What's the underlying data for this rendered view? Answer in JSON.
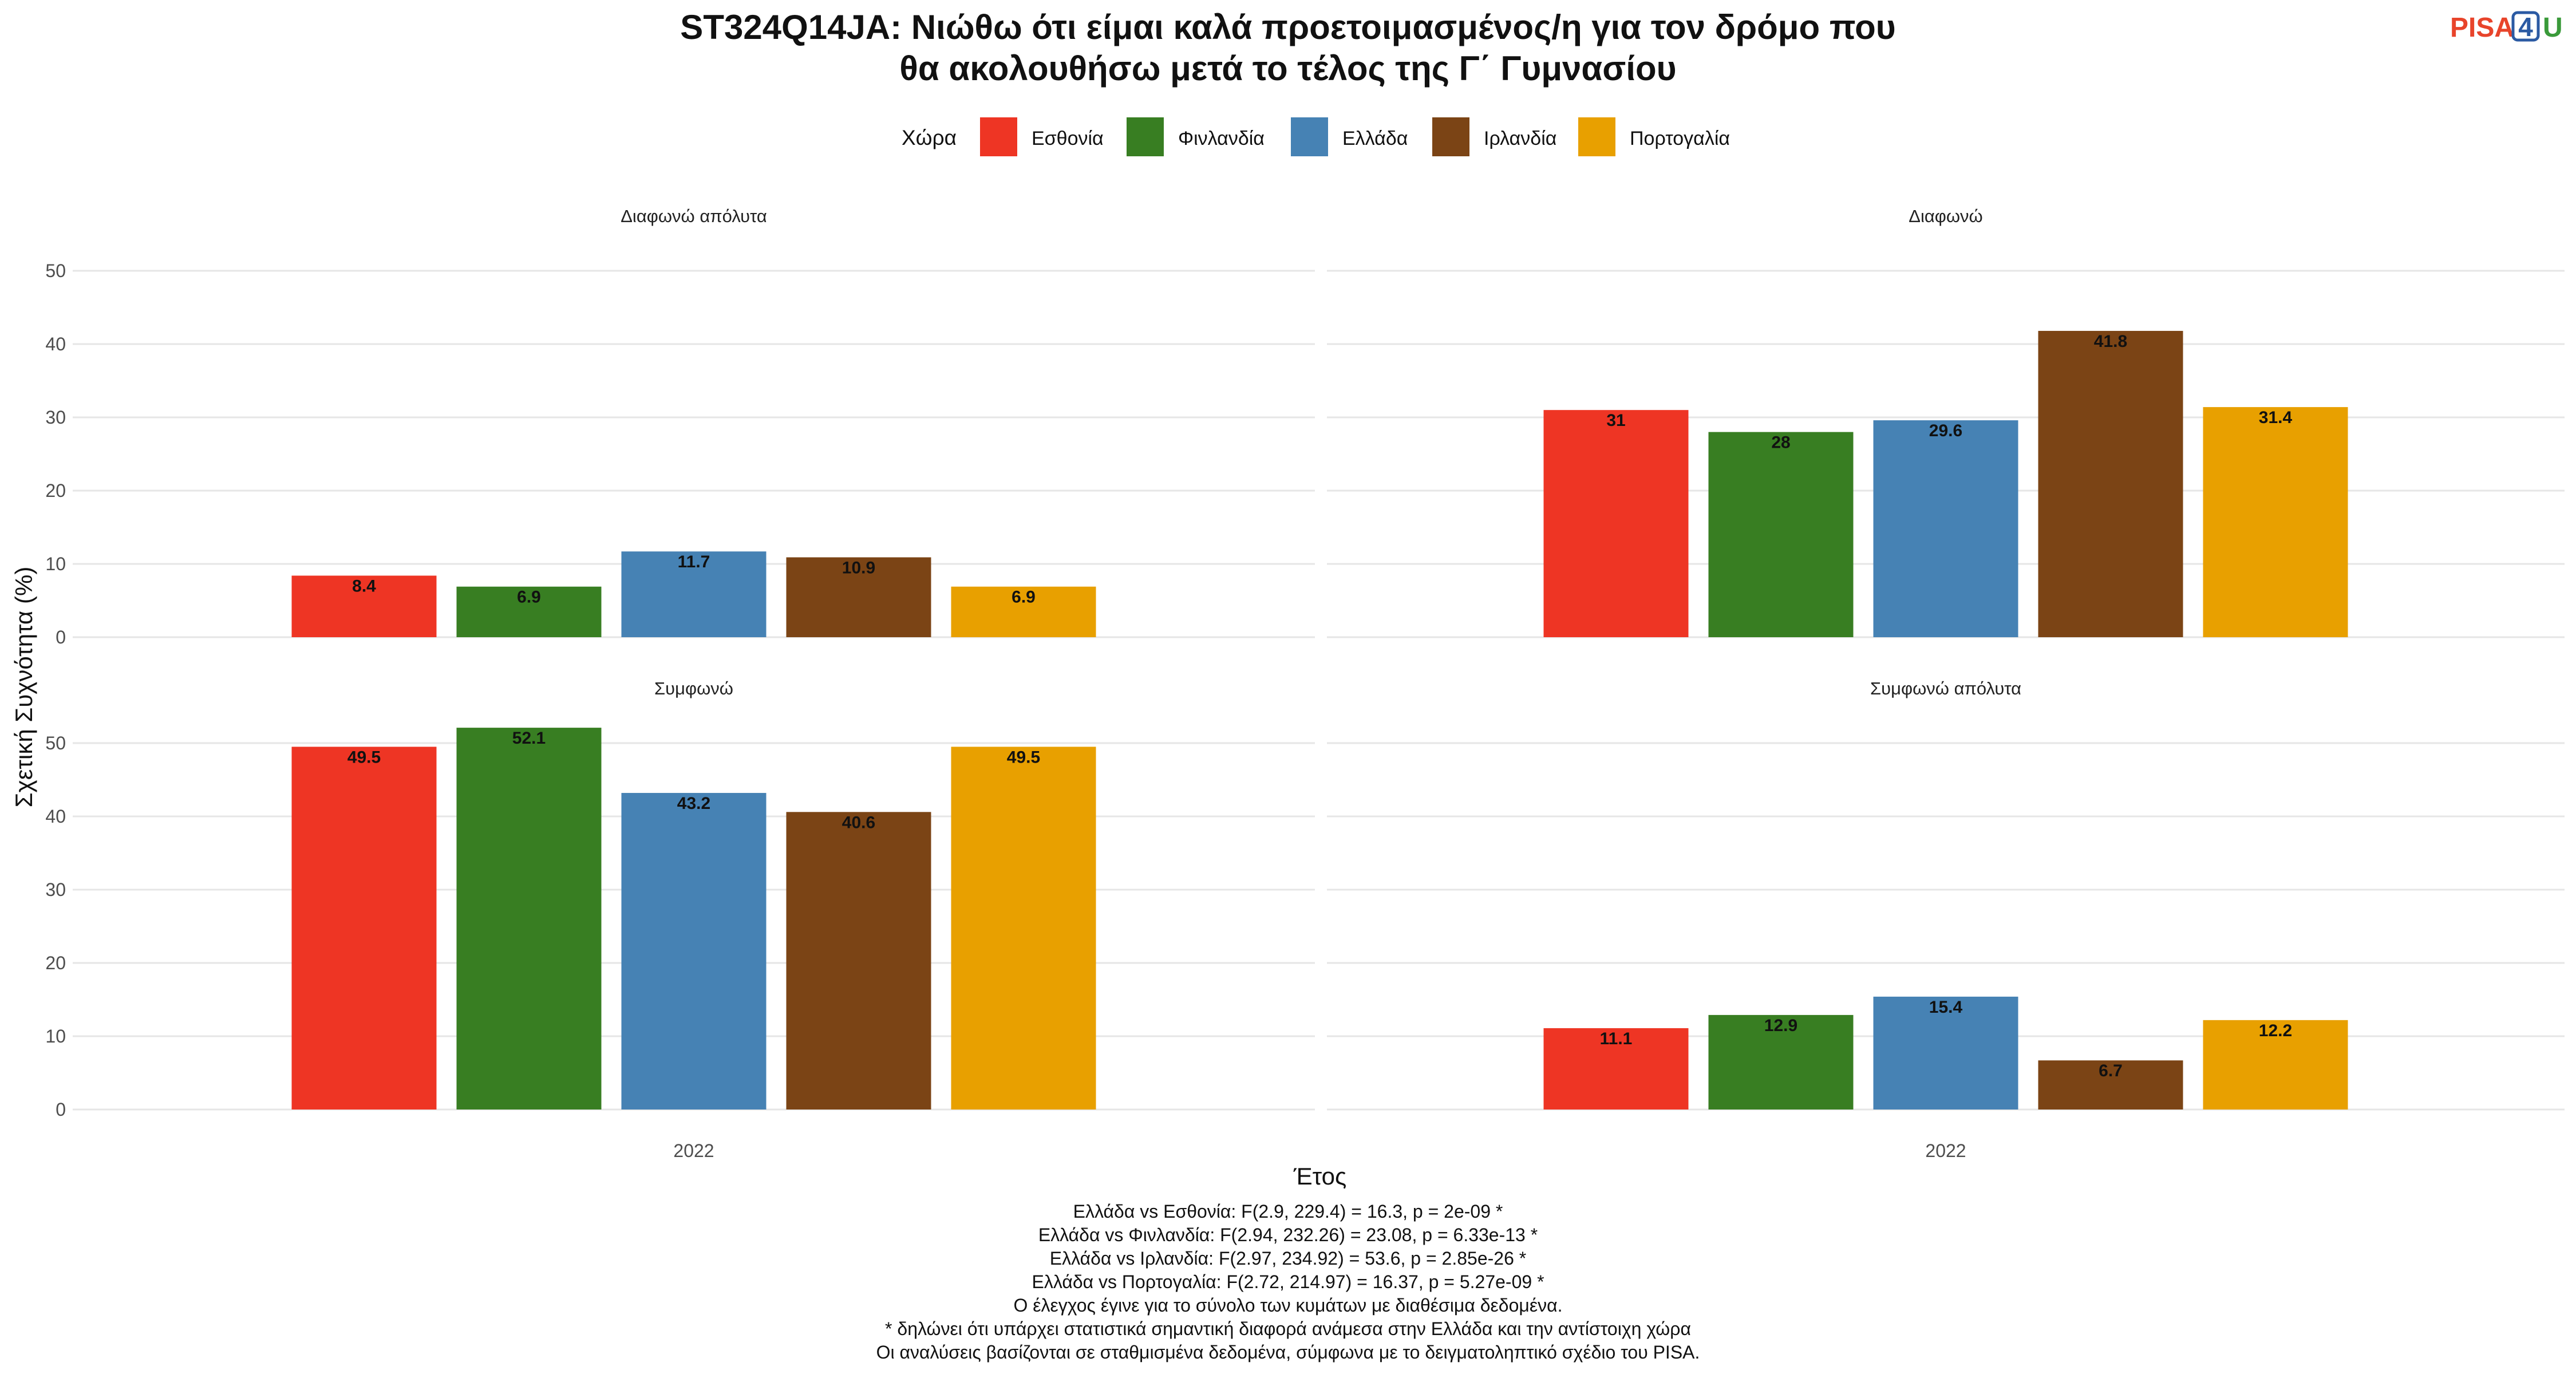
{
  "chart_data": {
    "type": "bar",
    "title_lines": [
      "ST324Q14JA: Νιώθω ότι είμαι καλά προετοιμασμένος/η για τον δρόμο που",
      "θα ακολουθήσω μετά το τέλος της Γ΄ Γυμνασίου"
    ],
    "legend": {
      "title": "Χώρα",
      "placement": "top",
      "entries": [
        "Εσθονία",
        "Φινλανδία",
        "Ελλάδα",
        "Ιρλανδία",
        "Πορτογαλία"
      ]
    },
    "colors": [
      "#ee3524",
      "#387e22",
      "#4682b4",
      "#7b4415",
      "#e8a000"
    ],
    "xlabel": "Έτος",
    "ylabel": "Σχετική Συχνότητα (%)",
    "ylim": [
      0,
      50
    ],
    "yticks": [
      0,
      10,
      20,
      30,
      40,
      50
    ],
    "grid": true,
    "categories": [
      "2022"
    ],
    "facets": [
      {
        "label": "Διαφωνώ απόλυτα",
        "values": [
          8.4,
          6.9,
          11.7,
          10.9,
          6.9
        ]
      },
      {
        "label": "Διαφωνώ",
        "values": [
          31,
          28,
          29.6,
          41.8,
          31.4
        ]
      },
      {
        "label": "Συμφωνώ",
        "values": [
          49.5,
          52.1,
          43.2,
          40.6,
          49.5
        ]
      },
      {
        "label": "Συμφωνώ απόλυτα",
        "values": [
          11.1,
          12.9,
          15.4,
          6.7,
          12.2
        ]
      }
    ]
  },
  "caption_lines": [
    "Ελλάδα vs Εσθονία: F(2.9, 229.4) = 16.3, p = 2e-09 *",
    "Ελλάδα vs Φινλανδία: F(2.94, 232.26) = 23.08, p = 6.33e-13 *",
    "Ελλάδα vs Ιρλανδία: F(2.97, 234.92) = 53.6, p = 2.85e-26 *",
    "Ελλάδα vs Πορτογαλία: F(2.72, 214.97) = 16.37, p = 5.27e-09 *",
    "Ο έλεγχος έγινε για το σύνολο των κυμάτων με διαθέσιμα δεδομένα.",
    "* δηλώνει ότι υπάρχει στατιστικά σημαντική διαφορά ανάμεσα στην Ελλάδα και την αντίστοιχη χώρα",
    "Οι αναλύσεις βασίζονται σε σταθμισμένα δεδομένα, σύμφωνα με το δειγματοληπτικό σχέδιο του PISA."
  ],
  "logo": {
    "part1": "PISA",
    "part2": "4",
    "part3": "U"
  }
}
